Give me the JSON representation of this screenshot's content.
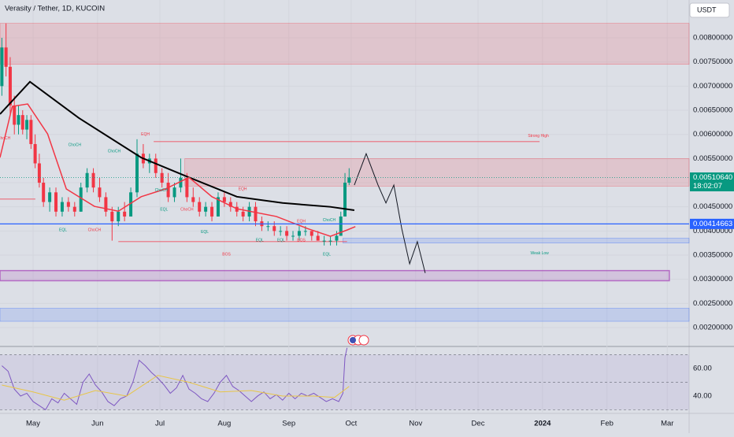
{
  "chart_data": [
    {
      "type": "candlestick",
      "title": "Verasity / Tether, 1D, KUCOIN",
      "currency": "USDT",
      "xlim": [
        -15.9,
        315.5
      ],
      "xticks": [
        {
          "value": 0,
          "label": "May"
        },
        {
          "value": 31,
          "label": "Jun"
        },
        {
          "value": 61,
          "label": "Jul"
        },
        {
          "value": 92,
          "label": "Aug"
        },
        {
          "value": 123,
          "label": "Sep"
        },
        {
          "value": 153,
          "label": "Oct"
        },
        {
          "value": 184,
          "label": "Nov"
        },
        {
          "value": 214,
          "label": "Dec"
        },
        {
          "value": 245,
          "label": "2024"
        },
        {
          "value": 276,
          "label": "Feb"
        },
        {
          "value": 305,
          "label": "Mar"
        }
      ],
      "ylim": [
        0.001609,
        0.008783
      ],
      "yticks": [
        {
          "value": 0.002,
          "label": "0.00200000"
        },
        {
          "value": 0.0025,
          "label": "0.00250000"
        },
        {
          "value": 0.003,
          "label": "0.00300000"
        },
        {
          "value": 0.0035,
          "label": "0.00350000"
        },
        {
          "value": 0.004,
          "label": "0.00400000"
        },
        {
          "value": 0.0045,
          "label": "0.00450000"
        },
        {
          "value": 0.005,
          "label": "0.00500000"
        },
        {
          "value": 0.0055,
          "label": "0.00550000"
        },
        {
          "value": 0.006,
          "label": "0.00600000"
        },
        {
          "value": 0.0065,
          "label": "0.00650000"
        },
        {
          "value": 0.007,
          "label": "0.00700000"
        },
        {
          "value": 0.0075,
          "label": "0.00750000"
        },
        {
          "value": 0.008,
          "label": "0.00800000"
        }
      ],
      "grid": true,
      "up_color": "#089981",
      "down_color": "#f23645",
      "x": [
        -15,
        -13,
        -11,
        -9,
        -7,
        -5,
        -3,
        -1,
        1,
        3,
        5,
        8,
        11,
        14,
        17,
        20,
        23,
        26,
        29,
        32,
        35,
        38,
        41,
        44,
        47,
        50,
        53,
        56,
        59,
        62,
        65,
        68,
        71,
        74,
        77,
        80,
        83,
        86,
        89,
        92,
        95,
        98,
        101,
        104,
        107,
        110,
        113,
        116,
        119,
        122,
        125,
        128,
        131,
        134,
        137,
        140,
        143,
        146,
        148,
        150,
        152
      ],
      "open": [
        0.007,
        0.0078,
        0.0074,
        0.0066,
        0.0062,
        0.0064,
        0.0061,
        0.0063,
        0.0058,
        0.0054,
        0.005,
        0.0046,
        0.0048,
        0.0044,
        0.0046,
        0.0045,
        0.0044,
        0.0049,
        0.0052,
        0.0049,
        0.0047,
        0.0044,
        0.0042,
        0.0044,
        0.0043,
        0.0048,
        0.0056,
        0.0054,
        0.0055,
        0.0052,
        0.005,
        0.0047,
        0.0049,
        0.0051,
        0.0047,
        0.0046,
        0.0044,
        0.0045,
        0.0043,
        0.0047,
        0.0046,
        0.0045,
        0.0044,
        0.0043,
        0.0045,
        0.0042,
        0.0041,
        0.0041,
        0.004,
        0.004,
        0.0039,
        0.0039,
        0.004,
        0.004,
        0.0039,
        0.0038,
        0.0038,
        0.0038,
        0.0039,
        0.0043,
        0.005
      ],
      "high": [
        0.008,
        0.0083,
        0.0076,
        0.0068,
        0.0066,
        0.0065,
        0.0064,
        0.0064,
        0.006,
        0.0056,
        0.0051,
        0.0049,
        0.0049,
        0.0047,
        0.0047,
        0.0046,
        0.005,
        0.0053,
        0.0053,
        0.0051,
        0.0048,
        0.0045,
        0.0045,
        0.0046,
        0.0049,
        0.0059,
        0.0058,
        0.0056,
        0.0056,
        0.0053,
        0.0052,
        0.005,
        0.0055,
        0.0052,
        0.0049,
        0.0047,
        0.0046,
        0.0046,
        0.0048,
        0.0048,
        0.0047,
        0.0046,
        0.0045,
        0.0046,
        0.0046,
        0.0043,
        0.0042,
        0.0042,
        0.0041,
        0.0041,
        0.004,
        0.0041,
        0.0041,
        0.004,
        0.004,
        0.0039,
        0.0039,
        0.004,
        0.0044,
        0.0052,
        0.0053
      ],
      "low": [
        0.0068,
        0.0072,
        0.0064,
        0.006,
        0.006,
        0.006,
        0.0059,
        0.0057,
        0.0053,
        0.0049,
        0.0045,
        0.0044,
        0.0043,
        0.0043,
        0.0044,
        0.0043,
        0.0044,
        0.0048,
        0.0048,
        0.0046,
        0.0043,
        0.0038,
        0.0041,
        0.0042,
        0.0043,
        0.0047,
        0.0053,
        0.0052,
        0.0051,
        0.0049,
        0.0046,
        0.0046,
        0.0048,
        0.0046,
        0.0045,
        0.0043,
        0.0043,
        0.0042,
        0.0043,
        0.0045,
        0.0044,
        0.0043,
        0.0042,
        0.0042,
        0.0041,
        0.004,
        0.004,
        0.0039,
        0.0039,
        0.0038,
        0.0038,
        0.0038,
        0.0039,
        0.0038,
        0.0038,
        0.0037,
        0.0037,
        0.0037,
        0.0039,
        0.0043,
        0.00495
      ],
      "close": [
        0.0078,
        0.0074,
        0.0066,
        0.0062,
        0.0064,
        0.0061,
        0.0063,
        0.0058,
        0.0054,
        0.005,
        0.0046,
        0.0048,
        0.0044,
        0.0046,
        0.0045,
        0.0044,
        0.0049,
        0.0052,
        0.0049,
        0.0047,
        0.0044,
        0.0042,
        0.0044,
        0.0043,
        0.0048,
        0.0056,
        0.0054,
        0.0055,
        0.0052,
        0.005,
        0.0047,
        0.0049,
        0.0051,
        0.0047,
        0.0046,
        0.0044,
        0.0045,
        0.0043,
        0.0047,
        0.0046,
        0.0045,
        0.0044,
        0.0043,
        0.0045,
        0.0042,
        0.0041,
        0.0041,
        0.004,
        0.004,
        0.0039,
        0.0039,
        0.004,
        0.004,
        0.0039,
        0.0038,
        0.0038,
        0.0038,
        0.0039,
        0.0043,
        0.005,
        0.0051064
      ],
      "lines": [
        {
          "color": "#000000",
          "width": 2,
          "x": [
            -15.9,
            -1.5,
            22,
            52,
            75,
            98,
            120,
            143,
            154.5
          ],
          "values": [
            0.00642,
            0.00709,
            0.00634,
            0.00552,
            0.00511,
            0.00471,
            0.00458,
            0.0045,
            0.00443
          ]
        },
        {
          "color": "#f23645",
          "width": 1.5,
          "x": [
            -15.9,
            -10,
            -2.6,
            7,
            16,
            29.5,
            41,
            52,
            63.6,
            75,
            86,
            98,
            117,
            132,
            143,
            151,
            155
          ],
          "values": [
            0.00552,
            0.00658,
            0.00663,
            0.00601,
            0.00487,
            0.00451,
            0.00441,
            0.00471,
            0.00487,
            0.00511,
            0.00471,
            0.00446,
            0.0043,
            0.00405,
            0.00389,
            0.00402,
            0.00409
          ]
        },
        {
          "color": "#131722",
          "width": 1,
          "x": [
            154.5,
            160.2,
            165.9,
            169.7,
            173.5,
            177.3,
            181.1,
            184.8,
            188.6
          ],
          "values": [
            0.00495,
            0.0056,
            0.00495,
            0.00458,
            0.00495,
            0.00405,
            0.00332,
            0.00378,
            0.00313
          ]
        }
      ],
      "zones": [
        {
          "x": [
            -15.9,
            315.5
          ],
          "y": [
            0.00745,
            0.0083
          ],
          "color": "#f23645"
        },
        {
          "x": [
            73,
            315.5
          ],
          "y": [
            0.00493,
            0.0055
          ],
          "color": "#f23645"
        },
        {
          "x": [
            149,
            315.5
          ],
          "y": [
            0.00375,
            0.00385
          ],
          "color": "#2962ff"
        },
        {
          "x": [
            -15.9,
            306
          ],
          "y": [
            0.00297,
            0.00318
          ],
          "color": "#9c27b0"
        },
        {
          "x": [
            -15.9,
            315.5
          ],
          "y": [
            0.00213,
            0.0024
          ],
          "color": "#2962ff"
        }
      ],
      "levels": [
        {
          "x": [
            58,
            243.6
          ],
          "y": 0.00585,
          "color": "#f23645"
        },
        {
          "x": [
            41,
            151
          ],
          "y": 0.00378,
          "color": "#f23645"
        },
        {
          "x": [
            -15.9,
            1.1
          ],
          "y": 0.00466,
          "color": "#f23645"
        }
      ],
      "price_labels": [
        {
          "value": 0.0051064,
          "label": "0.00510640",
          "color": "#089981",
          "countdown": "18:02:07"
        },
        {
          "value": 0.00414663,
          "label": "0.00414663",
          "color": "#2962ff"
        }
      ],
      "annotations": [
        {
          "text": "ChoCH",
          "x": -14,
          "y": 0.00592,
          "color": "#f23645"
        },
        {
          "text": "EQL",
          "x": 14.4,
          "y": 0.00402,
          "color": "#089981"
        },
        {
          "text": "ChoCH",
          "x": 29.5,
          "y": 0.00402,
          "color": "#f23645"
        },
        {
          "text": "ChoCH",
          "x": 20,
          "y": 0.00578,
          "color": "#089981"
        },
        {
          "text": "ChoCH",
          "x": 39,
          "y": 0.00565,
          "color": "#089981"
        },
        {
          "text": "EQH",
          "x": 54,
          "y": 0.006,
          "color": "#f23645"
        },
        {
          "text": "EQL",
          "x": 63,
          "y": 0.00444,
          "color": "#089981"
        },
        {
          "text": "ChoCH",
          "x": 61.7,
          "y": 0.00484,
          "color": "#089981"
        },
        {
          "text": "ChoCH",
          "x": 74,
          "y": 0.00444,
          "color": "#f23645"
        },
        {
          "text": "EQL",
          "x": 82.6,
          "y": 0.00398,
          "color": "#089981"
        },
        {
          "text": "EQH",
          "x": 100.8,
          "y": 0.00487,
          "color": "#f23645"
        },
        {
          "text": "EQL",
          "x": 109,
          "y": 0.00381,
          "color": "#089981"
        },
        {
          "text": "EQL",
          "x": 119.3,
          "y": 0.00381,
          "color": "#089981"
        },
        {
          "text": "EQH",
          "x": 129,
          "y": 0.0042,
          "color": "#f23645"
        },
        {
          "text": "ChoCH",
          "x": 142.4,
          "y": 0.00422,
          "color": "#089981"
        },
        {
          "text": "BOS",
          "x": 129,
          "y": 0.00381,
          "color": "#f23645"
        },
        {
          "text": "BOS",
          "x": 93,
          "y": 0.00351,
          "color": "#f23645"
        },
        {
          "text": "EQL",
          "x": 141.3,
          "y": 0.00351,
          "color": "#089981"
        },
        {
          "text": "Strong High",
          "x": 243,
          "y": 0.00597,
          "color": "#f23645"
        },
        {
          "text": "Weak Low",
          "x": 243.6,
          "y": 0.00354,
          "color": "#089981"
        }
      ]
    },
    {
      "type": "line",
      "xlim": [
        -15.9,
        315.5
      ],
      "ylim": [
        27.4,
        76
      ],
      "yticks": [
        {
          "value": 40,
          "label": "40.00"
        },
        {
          "value": 60,
          "label": "60.00"
        }
      ],
      "levels": [
        70,
        50,
        30
      ],
      "series": [
        {
          "color": "#7e57c2",
          "x": [
            -15,
            -12,
            -9,
            -6,
            -3,
            0,
            3,
            6,
            9,
            12,
            15,
            18,
            21,
            24,
            27,
            30,
            33,
            36,
            39,
            42,
            45,
            48,
            51,
            54,
            57,
            60,
            63,
            66,
            69,
            72,
            75,
            78,
            81,
            84,
            87,
            90,
            93,
            96,
            99,
            102,
            105,
            108,
            111,
            114,
            117,
            120,
            123,
            126,
            129,
            132,
            135,
            138,
            141,
            144,
            147,
            149,
            150,
            151
          ],
          "values": [
            62,
            58,
            45,
            40,
            42,
            36,
            33,
            30,
            38,
            35,
            42,
            38,
            34,
            50,
            56,
            48,
            43,
            36,
            33,
            38,
            40,
            50,
            66,
            62,
            57,
            53,
            48,
            42,
            46,
            55,
            45,
            42,
            38,
            36,
            42,
            50,
            55,
            47,
            44,
            40,
            36,
            40,
            43,
            38,
            41,
            37,
            42,
            38,
            42,
            40,
            42,
            39,
            36,
            38,
            36,
            42,
            68,
            75
          ]
        },
        {
          "color": "#e8c547",
          "x": [
            -15,
            0,
            15,
            30,
            45,
            60,
            75,
            90,
            105,
            120,
            135,
            145,
            152
          ],
          "values": [
            48,
            43,
            37,
            44,
            40,
            55,
            50,
            43,
            44,
            40,
            40,
            39,
            47
          ]
        }
      ]
    }
  ]
}
